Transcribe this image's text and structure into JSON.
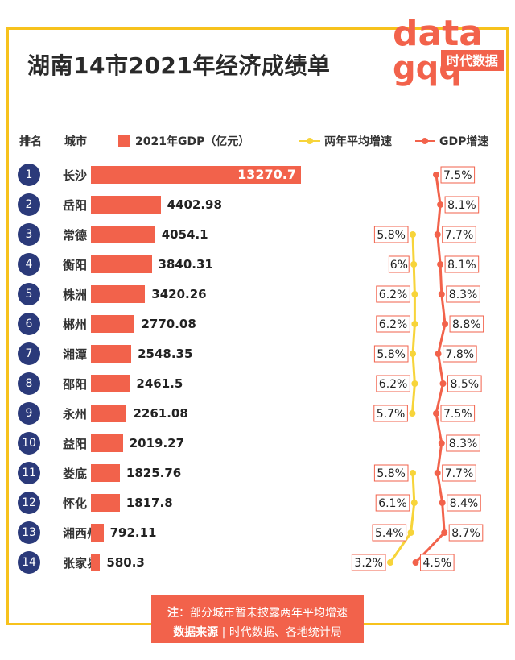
{
  "title": "湖南14市2021年经济成绩单",
  "logo": {
    "top": "data",
    "bottom": "gqq",
    "brand": "时代数据"
  },
  "headers": {
    "rank": "排名",
    "city": "城市",
    "gdp": "2021年GDP（亿元）",
    "avg": "两年平均增速",
    "growth": "GDP增速"
  },
  "colors": {
    "bar": "#f2624b",
    "badge": "#2b3a7a",
    "avg_line": "#f7d43a",
    "growth_line": "#f2624b",
    "frame": "#f7c21c"
  },
  "chart_data": {
    "type": "bar",
    "title": "湖南14市2021年经济成绩单",
    "categories": [
      "长沙",
      "岳阳",
      "常德",
      "衡阳",
      "株洲",
      "郴州",
      "湘潭",
      "邵阳",
      "永州",
      "益阳",
      "娄底",
      "怀化",
      "湘西州",
      "张家界"
    ],
    "ranks": [
      "1",
      "2",
      "3",
      "4",
      "5",
      "6",
      "7",
      "8",
      "9",
      "10",
      "11",
      "12",
      "13",
      "14"
    ],
    "series": [
      {
        "name": "2021年GDP（亿元）",
        "values": [
          13270.7,
          4402.98,
          4054.1,
          3840.31,
          3420.26,
          2770.08,
          2548.35,
          2461.5,
          2261.08,
          2019.27,
          1825.76,
          1817.8,
          792.11,
          580.3
        ],
        "labels": [
          "13270.7",
          "4402.98",
          "4054.1",
          "3840.31",
          "3420.26",
          "2770.08",
          "2548.35",
          "2461.5",
          "2261.08",
          "2019.27",
          "1825.76",
          "1817.8",
          "792.11",
          "580.3"
        ]
      },
      {
        "name": "两年平均增速",
        "values": [
          null,
          null,
          5.8,
          6.0,
          6.2,
          6.2,
          5.8,
          6.2,
          5.7,
          null,
          5.8,
          6.1,
          5.4,
          3.2
        ],
        "labels": [
          "",
          "",
          "5.8%",
          "6%",
          "6.2%",
          "6.2%",
          "5.8%",
          "6.2%",
          "5.7%",
          "",
          "5.8%",
          "6.1%",
          "5.4%",
          "3.2%"
        ]
      },
      {
        "name": "GDP增速",
        "values": [
          7.5,
          8.1,
          7.7,
          8.1,
          8.3,
          8.8,
          7.8,
          8.5,
          7.5,
          8.3,
          7.7,
          8.4,
          8.7,
          4.5
        ],
        "labels": [
          "7.5%",
          "8.1%",
          "7.7%",
          "8.1%",
          "8.3%",
          "8.8%",
          "7.8%",
          "8.5%",
          "7.5%",
          "8.3%",
          "7.7%",
          "8.4%",
          "8.7%",
          "4.5%"
        ]
      }
    ]
  },
  "footer": {
    "note_label": "注",
    "note_text": "：部分城市暂未披露两年平均增速",
    "source_label": "数据来源",
    "source_sep": "|",
    "source_text": "时代数据、各地统计局"
  }
}
